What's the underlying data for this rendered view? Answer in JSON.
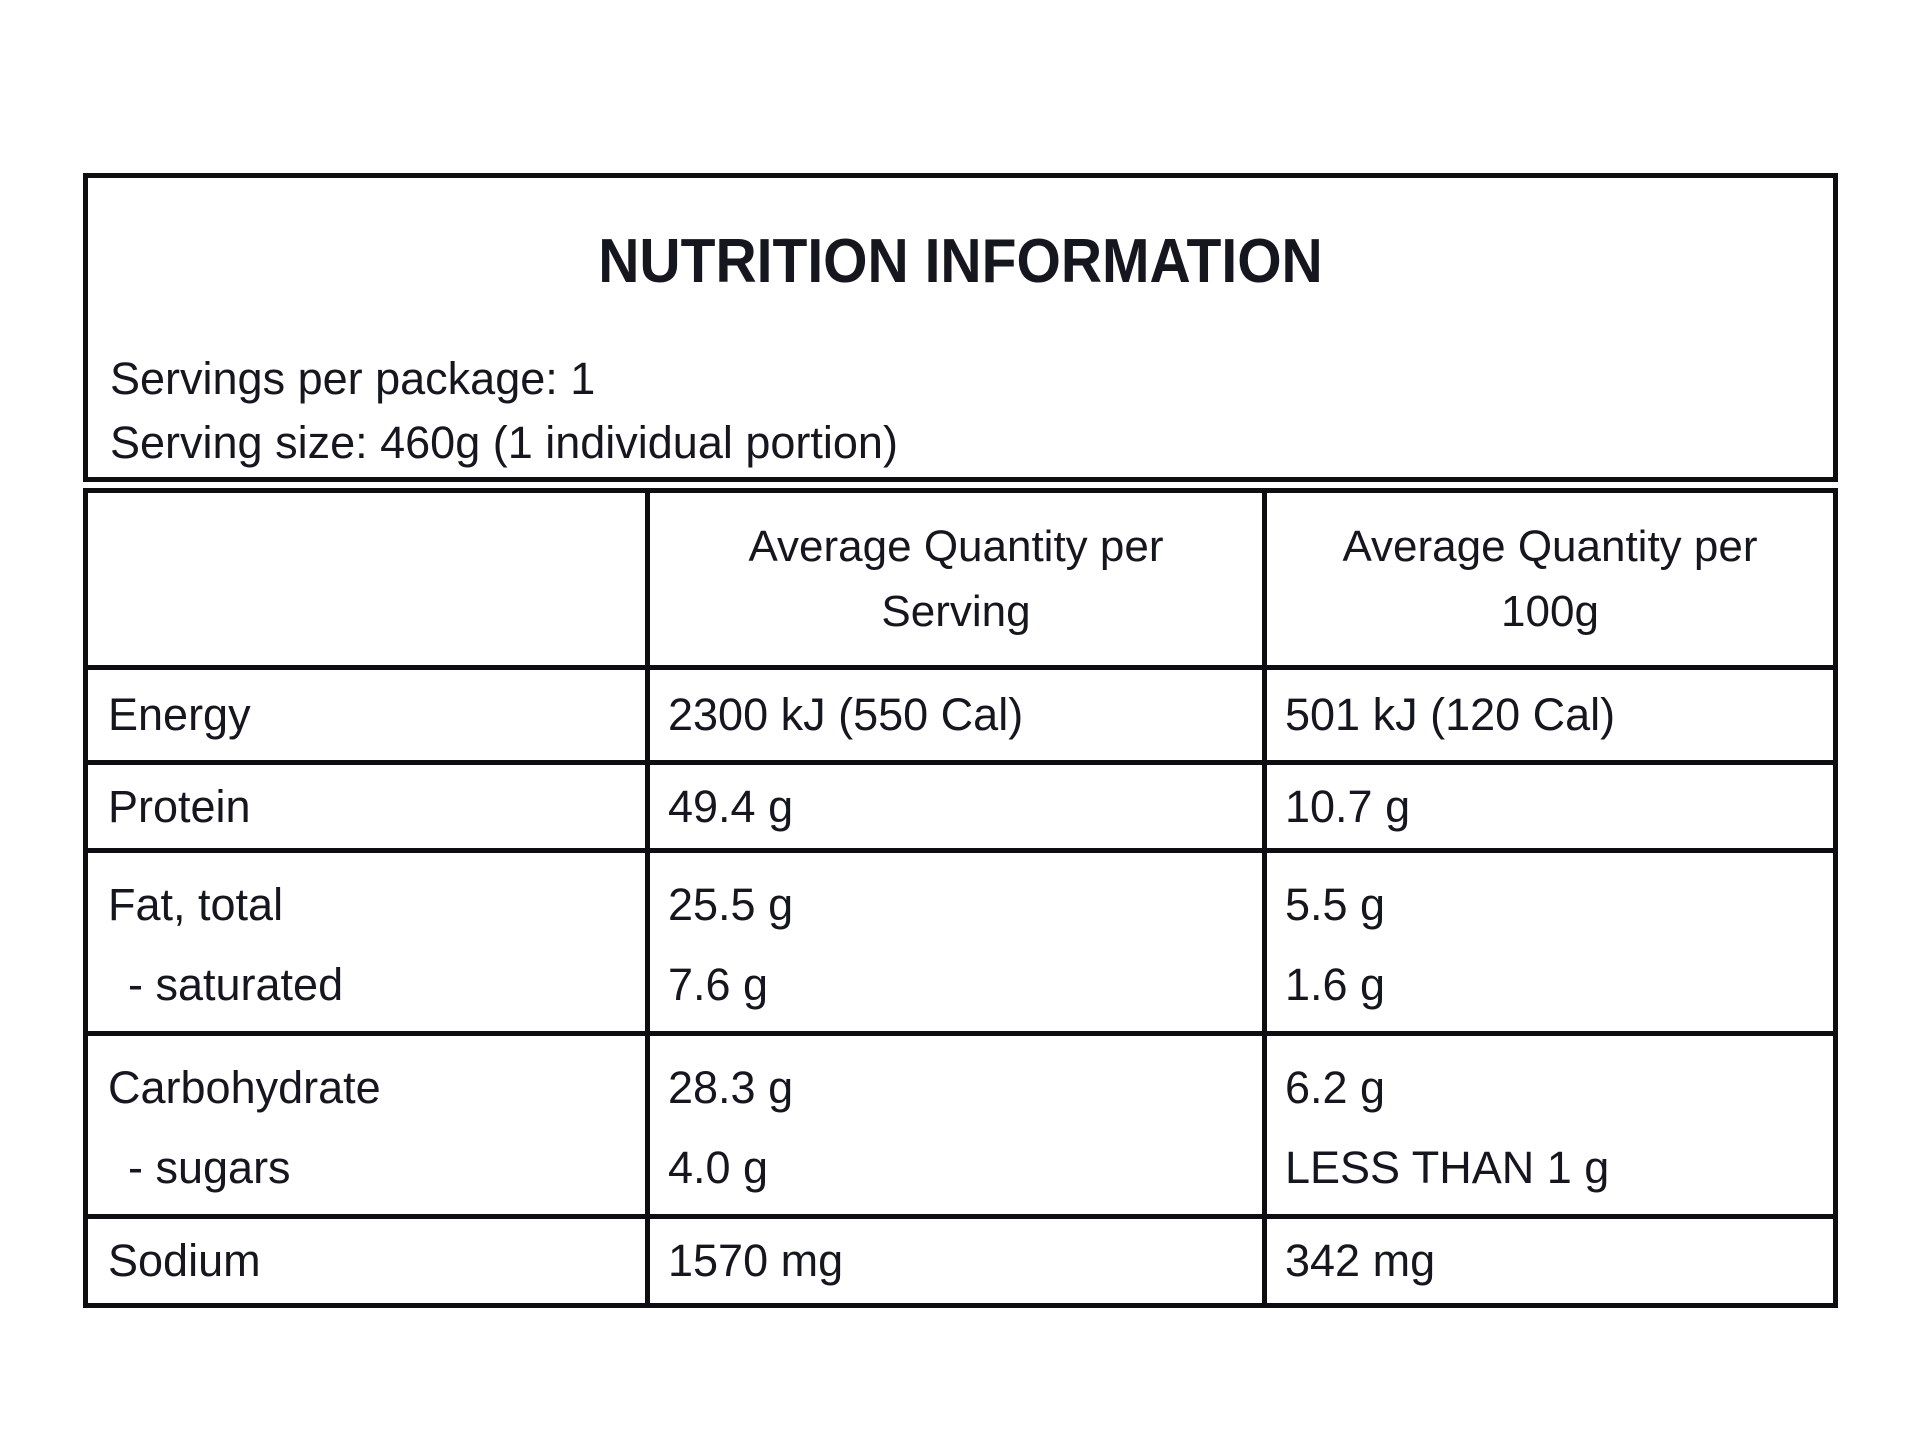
{
  "panel": {
    "title": "NUTRITION INFORMATION",
    "servings_per_package": "Servings per package: 1",
    "serving_size": "Serving size: 460g (1 individual portion)"
  },
  "table": {
    "headers": {
      "serving": {
        "line1": "Average Quantity per",
        "line2": "Serving"
      },
      "per100g": {
        "line1": "Average Quantity per",
        "line2": "100g"
      }
    },
    "rows": [
      {
        "label": "Energy",
        "serving": "2300 kJ (550 Cal)",
        "per100g": "501 kJ (120 Cal)"
      },
      {
        "label": "Protein",
        "serving": "49.4 g",
        "per100g": "10.7 g"
      },
      {
        "label": "Fat, total",
        "serving": "25.5 g",
        "per100g": "5.5 g",
        "sub_label": "- saturated",
        "sub_serving": "7.6 g",
        "sub_per100g": "1.6 g"
      },
      {
        "label": "Carbohydrate",
        "serving": "28.3 g",
        "per100g": "6.2 g",
        "sub_label": "- sugars",
        "sub_serving": "4.0 g",
        "sub_per100g": "LESS THAN 1 g"
      },
      {
        "label": "Sodium",
        "serving": "1570 mg",
        "per100g": "342 mg"
      }
    ]
  },
  "colors": {
    "text": "#16161f",
    "border": "#0d0d12",
    "background": "#ffffff"
  }
}
